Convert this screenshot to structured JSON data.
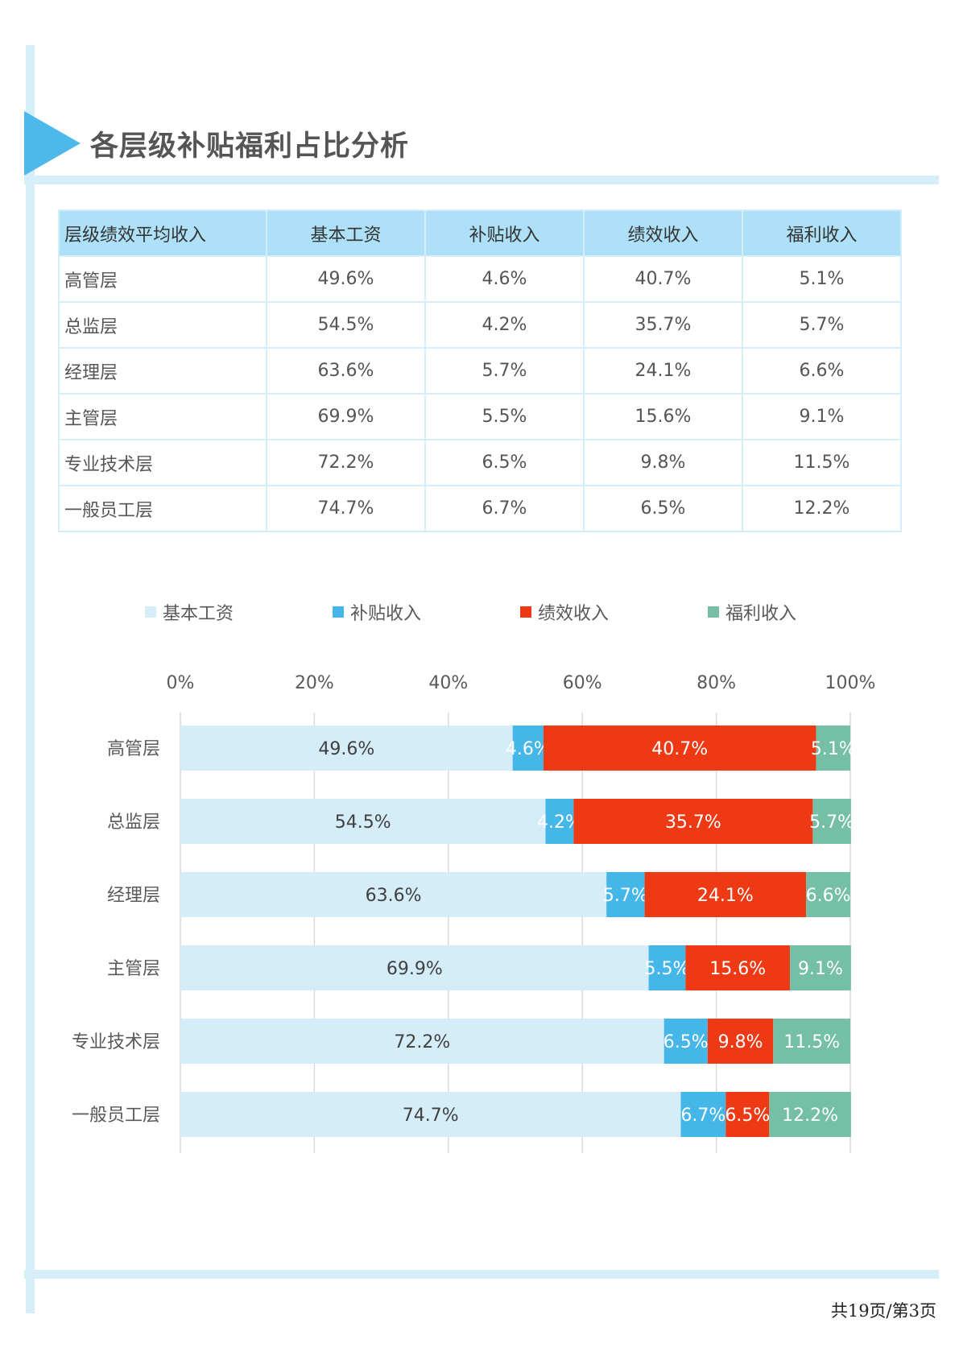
{
  "page": {
    "title": "各层级补贴福利占比分析",
    "footer": "共19页/第3页"
  },
  "table": {
    "headers": [
      "层级绩效平均收入",
      "基本工资",
      "补贴收入",
      "绩效收入",
      "福利收入"
    ],
    "rows": [
      [
        "高管层",
        "49.6%",
        "4.6%",
        "40.7%",
        "5.1%"
      ],
      [
        "总监层",
        "54.5%",
        "4.2%",
        "35.7%",
        "5.7%"
      ],
      [
        "经理层",
        "63.6%",
        "5.7%",
        "24.1%",
        "6.6%"
      ],
      [
        "主管层",
        "69.9%",
        "5.5%",
        "15.6%",
        "9.1%"
      ],
      [
        "专业技术层",
        "72.2%",
        "6.5%",
        "9.8%",
        "11.5%"
      ],
      [
        "一般员工层",
        "74.7%",
        "6.7%",
        "6.5%",
        "12.2%"
      ]
    ]
  },
  "chart_data": {
    "type": "bar",
    "orientation": "horizontal",
    "stacked": "percent",
    "categories": [
      "高管层",
      "总监层",
      "经理层",
      "主管层",
      "专业技术层",
      "一般员工层"
    ],
    "series": [
      {
        "name": "基本工资",
        "color": "#d4edf9",
        "label_color": "#404040",
        "values": [
          49.6,
          54.5,
          63.6,
          69.9,
          72.2,
          74.7
        ]
      },
      {
        "name": "补贴收入",
        "color": "#45b6e8",
        "label_color": "#ffffff",
        "values": [
          4.6,
          4.2,
          5.7,
          5.5,
          6.5,
          6.7
        ]
      },
      {
        "name": "绩效收入",
        "color": "#ee3a14",
        "label_color": "#ffffff",
        "values": [
          40.7,
          35.7,
          24.1,
          15.6,
          9.8,
          6.5
        ]
      },
      {
        "name": "福利收入",
        "color": "#74bfa6",
        "label_color": "#ffffff",
        "values": [
          5.1,
          5.7,
          6.6,
          9.1,
          11.5,
          12.2
        ]
      }
    ],
    "xlim": [
      0,
      100
    ],
    "xticks": [
      "0%",
      "20%",
      "40%",
      "60%",
      "80%",
      "100%"
    ],
    "axis_position": "top",
    "grid": true,
    "legend_position": "top",
    "data_labels": true
  }
}
